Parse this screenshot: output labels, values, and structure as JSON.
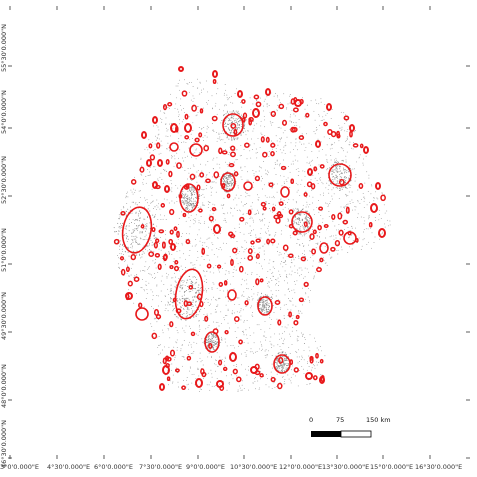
{
  "axes": {
    "lat_labels": [
      "55°30'0.000\"N",
      "54°0'0.000\"N",
      "52°30'0.000\"N",
      "51°0'0.000\"N",
      "49°30'0.000\"N",
      "48°0'0.000\"N",
      "46°30'0.000\"N"
    ],
    "lon_labels": [
      "3°0'0.000\"E",
      "4°30'0.000\"E",
      "6°0'0.000\"E",
      "7°30'0.000\"E",
      "9°0'0.000\"E",
      "10°30'0.000\"E",
      "12°0'0.000\"E",
      "13°30'0.000\"E",
      "15°0'0.000\"E",
      "16°30'0.000\"E"
    ]
  },
  "scale_bar": {
    "labels": [
      "0",
      "75",
      "150 km"
    ]
  },
  "colors": {
    "ellipse": "#e8191b",
    "points": "#9a9a9a",
    "frame": "#333333"
  }
}
